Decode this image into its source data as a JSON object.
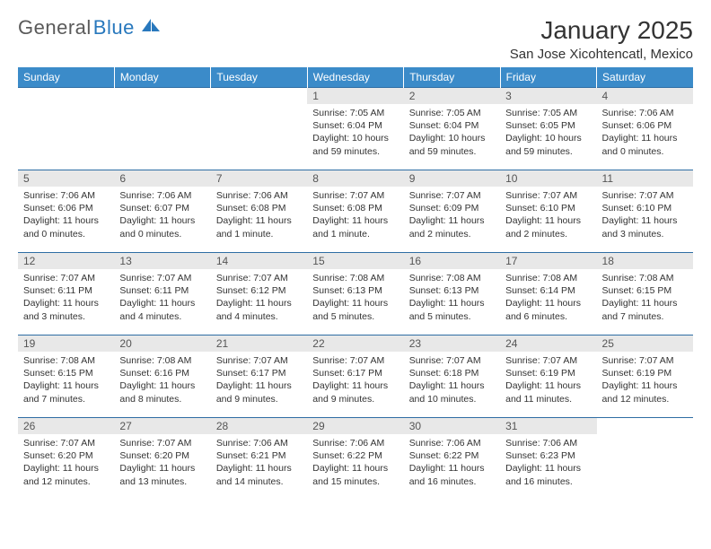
{
  "logo": {
    "text1": "General",
    "text2": "Blue"
  },
  "title": "January 2025",
  "location": "San Jose Xicohtencatl, Mexico",
  "colors": {
    "header_bg": "#3b8bc9",
    "header_fg": "#ffffff",
    "row_border": "#2e6da4",
    "daynum_bg": "#e8e8e8",
    "daynum_fg": "#555555",
    "text": "#333333",
    "logo_gray": "#5a5a5a",
    "logo_blue": "#2878bd"
  },
  "weekdays": [
    "Sunday",
    "Monday",
    "Tuesday",
    "Wednesday",
    "Thursday",
    "Friday",
    "Saturday"
  ],
  "weeks": [
    [
      null,
      null,
      null,
      {
        "n": "1",
        "sunrise": "7:05 AM",
        "sunset": "6:04 PM",
        "daylight": "10 hours and 59 minutes."
      },
      {
        "n": "2",
        "sunrise": "7:05 AM",
        "sunset": "6:04 PM",
        "daylight": "10 hours and 59 minutes."
      },
      {
        "n": "3",
        "sunrise": "7:05 AM",
        "sunset": "6:05 PM",
        "daylight": "10 hours and 59 minutes."
      },
      {
        "n": "4",
        "sunrise": "7:06 AM",
        "sunset": "6:06 PM",
        "daylight": "11 hours and 0 minutes."
      }
    ],
    [
      {
        "n": "5",
        "sunrise": "7:06 AM",
        "sunset": "6:06 PM",
        "daylight": "11 hours and 0 minutes."
      },
      {
        "n": "6",
        "sunrise": "7:06 AM",
        "sunset": "6:07 PM",
        "daylight": "11 hours and 0 minutes."
      },
      {
        "n": "7",
        "sunrise": "7:06 AM",
        "sunset": "6:08 PM",
        "daylight": "11 hours and 1 minute."
      },
      {
        "n": "8",
        "sunrise": "7:07 AM",
        "sunset": "6:08 PM",
        "daylight": "11 hours and 1 minute."
      },
      {
        "n": "9",
        "sunrise": "7:07 AM",
        "sunset": "6:09 PM",
        "daylight": "11 hours and 2 minutes."
      },
      {
        "n": "10",
        "sunrise": "7:07 AM",
        "sunset": "6:10 PM",
        "daylight": "11 hours and 2 minutes."
      },
      {
        "n": "11",
        "sunrise": "7:07 AM",
        "sunset": "6:10 PM",
        "daylight": "11 hours and 3 minutes."
      }
    ],
    [
      {
        "n": "12",
        "sunrise": "7:07 AM",
        "sunset": "6:11 PM",
        "daylight": "11 hours and 3 minutes."
      },
      {
        "n": "13",
        "sunrise": "7:07 AM",
        "sunset": "6:11 PM",
        "daylight": "11 hours and 4 minutes."
      },
      {
        "n": "14",
        "sunrise": "7:07 AM",
        "sunset": "6:12 PM",
        "daylight": "11 hours and 4 minutes."
      },
      {
        "n": "15",
        "sunrise": "7:08 AM",
        "sunset": "6:13 PM",
        "daylight": "11 hours and 5 minutes."
      },
      {
        "n": "16",
        "sunrise": "7:08 AM",
        "sunset": "6:13 PM",
        "daylight": "11 hours and 5 minutes."
      },
      {
        "n": "17",
        "sunrise": "7:08 AM",
        "sunset": "6:14 PM",
        "daylight": "11 hours and 6 minutes."
      },
      {
        "n": "18",
        "sunrise": "7:08 AM",
        "sunset": "6:15 PM",
        "daylight": "11 hours and 7 minutes."
      }
    ],
    [
      {
        "n": "19",
        "sunrise": "7:08 AM",
        "sunset": "6:15 PM",
        "daylight": "11 hours and 7 minutes."
      },
      {
        "n": "20",
        "sunrise": "7:08 AM",
        "sunset": "6:16 PM",
        "daylight": "11 hours and 8 minutes."
      },
      {
        "n": "21",
        "sunrise": "7:07 AM",
        "sunset": "6:17 PM",
        "daylight": "11 hours and 9 minutes."
      },
      {
        "n": "22",
        "sunrise": "7:07 AM",
        "sunset": "6:17 PM",
        "daylight": "11 hours and 9 minutes."
      },
      {
        "n": "23",
        "sunrise": "7:07 AM",
        "sunset": "6:18 PM",
        "daylight": "11 hours and 10 minutes."
      },
      {
        "n": "24",
        "sunrise": "7:07 AM",
        "sunset": "6:19 PM",
        "daylight": "11 hours and 11 minutes."
      },
      {
        "n": "25",
        "sunrise": "7:07 AM",
        "sunset": "6:19 PM",
        "daylight": "11 hours and 12 minutes."
      }
    ],
    [
      {
        "n": "26",
        "sunrise": "7:07 AM",
        "sunset": "6:20 PM",
        "daylight": "11 hours and 12 minutes."
      },
      {
        "n": "27",
        "sunrise": "7:07 AM",
        "sunset": "6:20 PM",
        "daylight": "11 hours and 13 minutes."
      },
      {
        "n": "28",
        "sunrise": "7:06 AM",
        "sunset": "6:21 PM",
        "daylight": "11 hours and 14 minutes."
      },
      {
        "n": "29",
        "sunrise": "7:06 AM",
        "sunset": "6:22 PM",
        "daylight": "11 hours and 15 minutes."
      },
      {
        "n": "30",
        "sunrise": "7:06 AM",
        "sunset": "6:22 PM",
        "daylight": "11 hours and 16 minutes."
      },
      {
        "n": "31",
        "sunrise": "7:06 AM",
        "sunset": "6:23 PM",
        "daylight": "11 hours and 16 minutes."
      },
      null
    ]
  ],
  "labels": {
    "sunrise": "Sunrise:",
    "sunset": "Sunset:",
    "daylight": "Daylight:"
  }
}
